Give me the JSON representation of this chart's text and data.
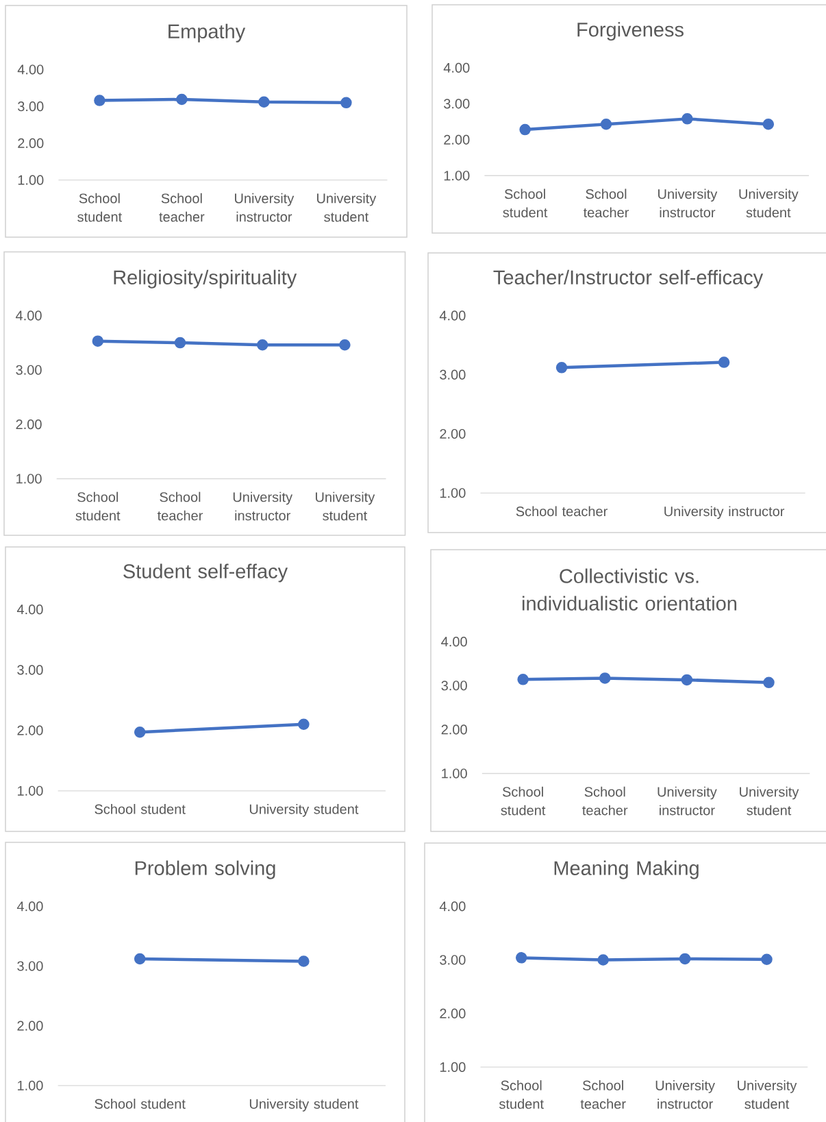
{
  "chart_data": [
    {
      "type": "line",
      "title": "Empathy",
      "categories": [
        "School student",
        "School teacher",
        "University instructor",
        "University student"
      ],
      "values": [
        3.16,
        3.19,
        3.12,
        3.1
      ],
      "color": "#4472c4",
      "marker": "circle",
      "ylim": [
        1,
        4
      ],
      "yticks": [
        {
          "value": 1,
          "label": "1.00"
        },
        {
          "value": 2,
          "label": "2.00"
        },
        {
          "value": 3,
          "label": "3.00"
        },
        {
          "value": 4,
          "label": "4.00"
        }
      ]
    },
    {
      "type": "line",
      "title": "Forgiveness",
      "categories": [
        "School student",
        "School teacher",
        "University instructor",
        "University student"
      ],
      "values": [
        2.28,
        2.43,
        2.58,
        2.43
      ],
      "color": "#4472c4",
      "marker": "circle",
      "ylim": [
        1,
        4
      ],
      "yticks": [
        {
          "value": 1,
          "label": "1.00"
        },
        {
          "value": 2,
          "label": "2.00"
        },
        {
          "value": 3,
          "label": "3.00"
        },
        {
          "value": 4,
          "label": "4.00"
        }
      ]
    },
    {
      "type": "line",
      "title": "Religiosity/spirituality",
      "categories": [
        "School student",
        "School teacher",
        "University instructor",
        "University student"
      ],
      "values": [
        3.53,
        3.5,
        3.46,
        3.46
      ],
      "color": "#4472c4",
      "marker": "circle",
      "ylim": [
        1,
        4
      ],
      "yticks": [
        {
          "value": 1,
          "label": "1.00"
        },
        {
          "value": 2,
          "label": "2.00"
        },
        {
          "value": 3,
          "label": "3.00"
        },
        {
          "value": 4,
          "label": "4.00"
        }
      ]
    },
    {
      "type": "line",
      "title": "Teacher/Instructor self-efficacy",
      "categories": [
        "School teacher",
        "University instructor"
      ],
      "values": [
        3.12,
        3.21
      ],
      "color": "#4472c4",
      "marker": "circle",
      "ylim": [
        1,
        4
      ],
      "yticks": [
        {
          "value": 1,
          "label": "1.00"
        },
        {
          "value": 2,
          "label": "2.00"
        },
        {
          "value": 3,
          "label": "3.00"
        },
        {
          "value": 4,
          "label": "4.00"
        }
      ]
    },
    {
      "type": "line",
      "title": "Student self-effacy",
      "categories": [
        "School student",
        "University student"
      ],
      "values": [
        1.97,
        2.1
      ],
      "color": "#4472c4",
      "marker": "circle",
      "ylim": [
        1,
        4
      ],
      "yticks": [
        {
          "value": 1,
          "label": "1.00"
        },
        {
          "value": 2,
          "label": "2.00"
        },
        {
          "value": 3,
          "label": "3.00"
        },
        {
          "value": 4,
          "label": "4.00"
        }
      ]
    },
    {
      "type": "line",
      "title": "Collectivistic vs. individualistic orientation",
      "categories": [
        "School student",
        "School teacher",
        "University instructor",
        "University student"
      ],
      "values": [
        3.14,
        3.17,
        3.13,
        3.07
      ],
      "color": "#4472c4",
      "marker": "circle",
      "ylim": [
        1,
        4
      ],
      "yticks": [
        {
          "value": 1,
          "label": "1.00"
        },
        {
          "value": 2,
          "label": "2.00"
        },
        {
          "value": 3,
          "label": "3.00"
        },
        {
          "value": 4,
          "label": "4.00"
        }
      ]
    },
    {
      "type": "line",
      "title": "Problem solving",
      "categories": [
        "School student",
        "University student"
      ],
      "values": [
        3.12,
        3.08
      ],
      "color": "#4472c4",
      "marker": "circle",
      "ylim": [
        1,
        4
      ],
      "yticks": [
        {
          "value": 1,
          "label": "1.00"
        },
        {
          "value": 2,
          "label": "2.00"
        },
        {
          "value": 3,
          "label": "3.00"
        },
        {
          "value": 4,
          "label": "4.00"
        }
      ]
    },
    {
      "type": "line",
      "title": "Meaning Making",
      "categories": [
        "School student",
        "School teacher",
        "University instructor",
        "University student"
      ],
      "values": [
        3.04,
        3.0,
        3.02,
        3.01
      ],
      "color": "#4472c4",
      "marker": "circle",
      "ylim": [
        1,
        4
      ],
      "yticks": [
        {
          "value": 1,
          "label": "1.00"
        },
        {
          "value": 2,
          "label": "2.00"
        },
        {
          "value": 3,
          "label": "3.00"
        },
        {
          "value": 4,
          "label": "4.00"
        }
      ]
    }
  ]
}
